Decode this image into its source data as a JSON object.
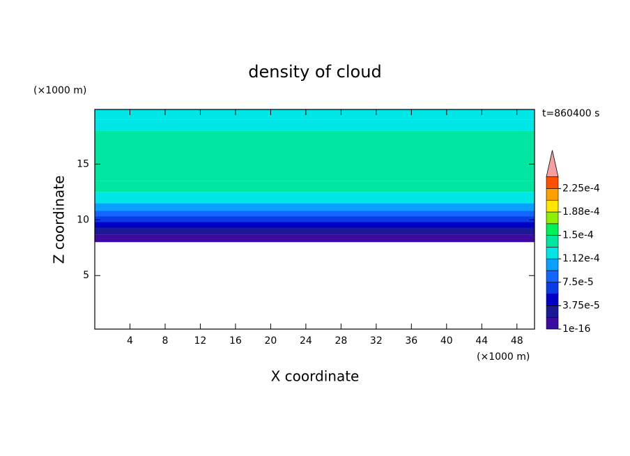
{
  "chart_data": {
    "type": "contour-profile",
    "title": "density of cloud",
    "x_label": "X coordinate",
    "y_label": "Z coordinate",
    "x_unit": "(×1000 m)",
    "y_unit": "(×1000 m)",
    "time_label": "t=860400 s",
    "xlim": [
      0,
      50
    ],
    "xticks": [
      4,
      8,
      12,
      16,
      20,
      24,
      28,
      32,
      36,
      40,
      44,
      48
    ],
    "ylim": [
      0.2,
      19.9
    ],
    "yticks": [
      5,
      10,
      15
    ],
    "z": [
      8,
      8.7,
      9.3,
      9.8,
      10.3,
      10.8,
      11.5,
      12.5,
      13.5,
      18,
      19,
      19.9
    ],
    "values": [
      1e-05,
      2.5e-05,
      4.5e-05,
      6e-05,
      8e-05,
      0.0001,
      0.00012,
      0.000135,
      0.000142,
      0.00013,
      0.00012
    ],
    "levels": [
      1e-16,
      1.875e-05,
      3.75e-05,
      5.625e-05,
      7.5e-05,
      9.375e-05,
      0.0001125,
      0.00013125,
      0.00015,
      0.00016875,
      0.0001875,
      0.00020625,
      0.000225,
      0.00024375
    ],
    "level_colors": [
      "#3c0a9e",
      "#1a1a96",
      "#0000c8",
      "#0a3ce6",
      "#1464ff",
      "#0aa0ff",
      "#00e6e6",
      "#00e6a0",
      "#00f05a",
      "#8cf000",
      "#ffe600",
      "#ffa000",
      "#ff5000"
    ],
    "overflow_color": "#f4a0a0",
    "colorbar_ticks": [
      1e-16,
      {
        "value": 3.75e-05,
        "label": "3.75e-5"
      },
      {
        "value": 7.5e-05,
        "label": "7.5e-5"
      },
      {
        "value": 0.0001125,
        "label": "1.12e-4"
      },
      {
        "value": 0.00015,
        "label": "1.5e-4"
      },
      {
        "value": 0.0001875,
        "label": "1.88e-4"
      },
      {
        "value": 0.000225,
        "label": "2.25e-4"
      }
    ]
  }
}
